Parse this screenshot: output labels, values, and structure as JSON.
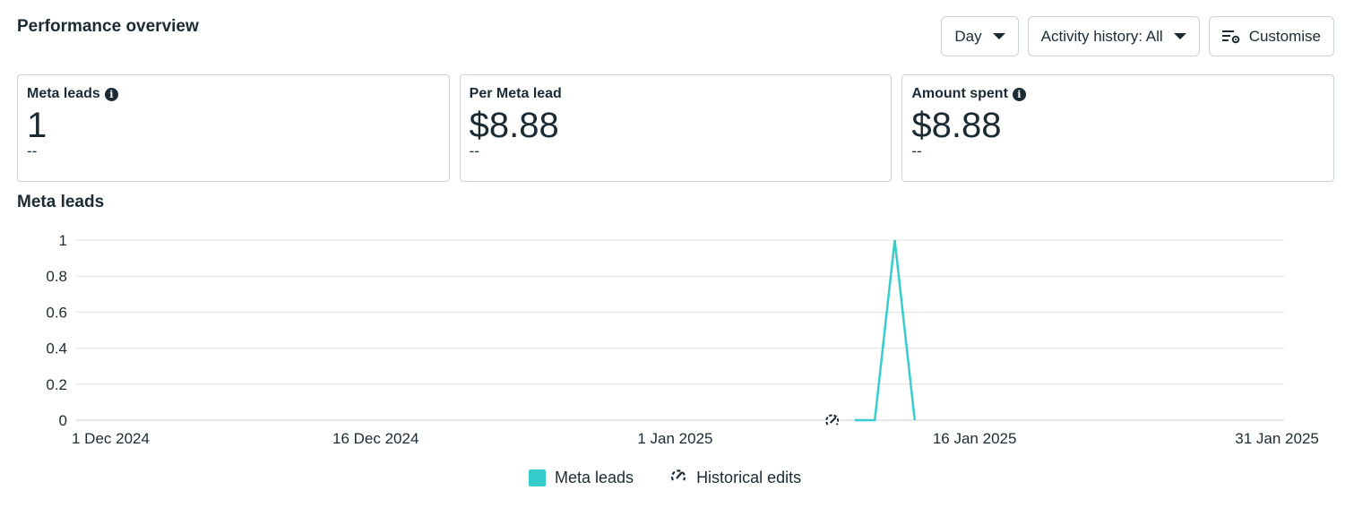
{
  "header": {
    "title": "Performance overview"
  },
  "toolbar": {
    "day_label": "Day",
    "activity_label": "Activity history: All",
    "customise_label": "Customise"
  },
  "cards": [
    {
      "label": "Meta leads",
      "value": "1",
      "compare": "--",
      "has_info": true
    },
    {
      "label": "Per Meta lead",
      "value": "$8.88",
      "compare": "--",
      "has_info": false
    },
    {
      "label": "Amount spent",
      "value": "$8.88",
      "compare": "--",
      "has_info": true
    }
  ],
  "chart": {
    "title": "Meta leads"
  },
  "legend": {
    "series_label": "Meta leads",
    "edits_label": "Historical edits"
  },
  "colors": {
    "series": "#36cccc",
    "text": "#1c2b33",
    "grid": "#dddfe2"
  },
  "chart_data": {
    "type": "line",
    "title": "Meta leads",
    "xlabel": "",
    "ylabel": "",
    "x_ticks": [
      "1 Dec 2024",
      "16 Dec 2024",
      "1 Jan 2025",
      "16 Jan 2025",
      "31 Jan 2025"
    ],
    "y_ticks": [
      "0",
      "0.2",
      "0.4",
      "0.6",
      "0.8",
      "1"
    ],
    "ylim": [
      0,
      1
    ],
    "xlim": [
      "2024-12-01",
      "2025-01-31"
    ],
    "grid": true,
    "legend_position": "bottom",
    "series": [
      {
        "name": "Meta leads",
        "color": "#36cccc",
        "points": [
          {
            "x": "2025-01-09",
            "y": 0
          },
          {
            "x": "2025-01-10",
            "y": 0
          },
          {
            "x": "2025-01-11",
            "y": 1
          },
          {
            "x": "2025-01-12",
            "y": 0
          }
        ]
      }
    ],
    "annotations": [
      {
        "type": "historical-edit",
        "x": "2025-01-08"
      }
    ]
  }
}
